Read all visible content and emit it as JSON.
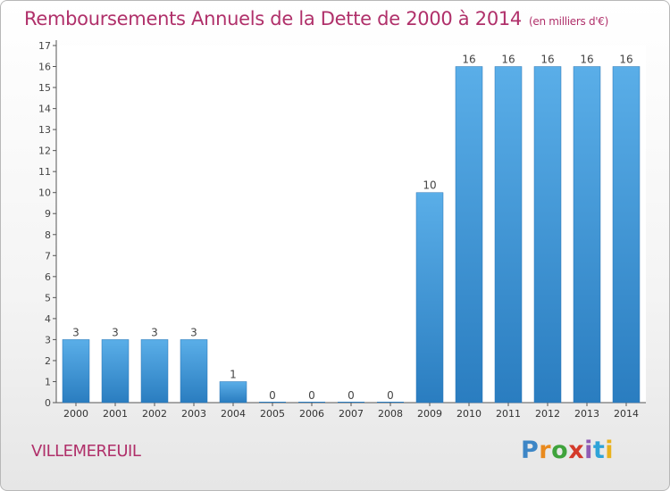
{
  "header": {
    "title": "Remboursements Annuels de la Dette de 2000 à 2014",
    "unit": "(en milliers d'€)"
  },
  "footer": {
    "commune": "VILLEMEREUIL",
    "logo": "Proxiti"
  },
  "colors": {
    "title": "#b0306a",
    "bar_light": "#5aaee8",
    "bar_dark": "#2a7dc0"
  },
  "chart_data": {
    "type": "bar",
    "title": "Remboursements Annuels de la Dette de 2000 à 2014",
    "subtitle": "(en milliers d'€)",
    "categories": [
      "2000",
      "2001",
      "2002",
      "2003",
      "2004",
      "2005",
      "2006",
      "2007",
      "2008",
      "2009",
      "2010",
      "2011",
      "2012",
      "2013",
      "2014"
    ],
    "values": [
      3,
      3,
      3,
      3,
      1,
      0,
      0,
      0,
      0,
      10,
      16,
      16,
      16,
      16,
      16
    ],
    "data_labels": [
      "3",
      "3",
      "3",
      "3",
      "1",
      "0",
      "0",
      "0",
      "0",
      "10",
      "16",
      "16",
      "16",
      "16",
      "16"
    ],
    "ylim": [
      0,
      17
    ],
    "yticks": [
      0,
      1,
      2,
      3,
      4,
      5,
      6,
      7,
      8,
      9,
      10,
      11,
      12,
      13,
      14,
      15,
      16,
      17
    ],
    "grid": false,
    "legend": "none"
  }
}
